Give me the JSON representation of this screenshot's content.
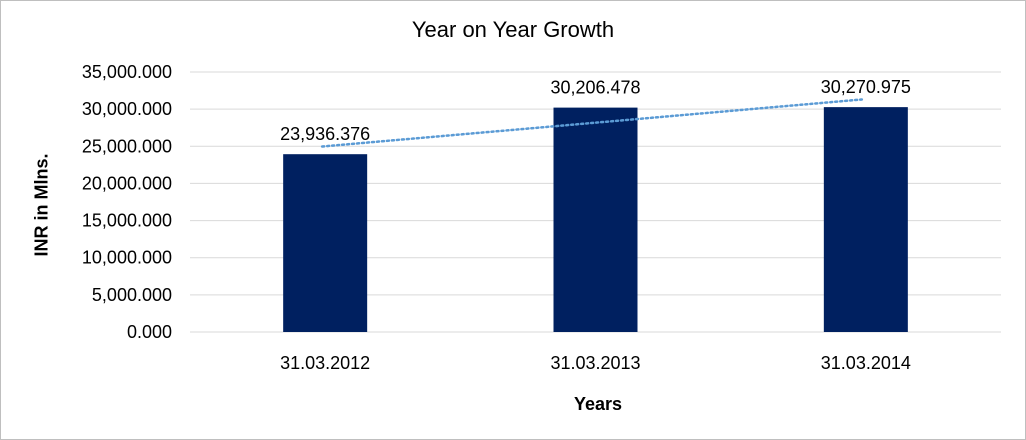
{
  "chart_data": {
    "type": "bar",
    "title": "Year on Year Growth",
    "xlabel": "Years",
    "ylabel": "INR in Mlns.",
    "categories": [
      "31.03.2012",
      "31.03.2013",
      "31.03.2014"
    ],
    "values": [
      23936.376,
      30206.478,
      30270.975
    ],
    "data_labels": [
      "23,936.376",
      "30,206.478",
      "30,270.975"
    ],
    "ylim": [
      0,
      35000
    ],
    "yticks": [
      0,
      5000,
      10000,
      15000,
      20000,
      25000,
      30000,
      35000
    ],
    "ytick_labels": [
      "0.000",
      "5,000.000",
      "10,000.000",
      "15,000.000",
      "20,000.000",
      "25,000.000",
      "30,000.000",
      "35,000.000"
    ],
    "trendline": "linear",
    "grid": true,
    "legend": "none",
    "colors": {
      "bar": "#002060",
      "trendline": "#5b9bd5",
      "grid": "#d9d9d9"
    }
  }
}
